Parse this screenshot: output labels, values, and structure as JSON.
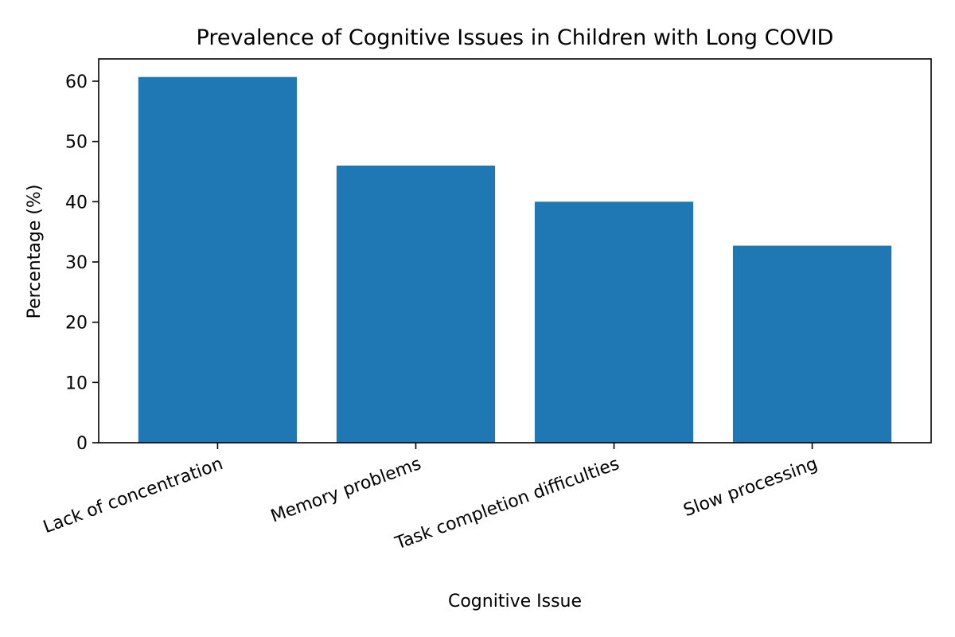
{
  "chart_data": {
    "type": "bar",
    "title": "Prevalence of Cognitive Issues in Children with Long COVID",
    "xlabel": "Cognitive Issue",
    "ylabel": "Percentage (%)",
    "categories": [
      "Lack of concentration",
      "Memory problems",
      "Task completion difficulties",
      "Slow processing"
    ],
    "values": [
      60.7,
      46.0,
      40.0,
      32.7
    ],
    "ylim": [
      0,
      63.7
    ],
    "yticks": [
      0,
      10,
      20,
      30,
      40,
      50,
      60
    ],
    "grid": false,
    "bar_color": "#1f77b4"
  }
}
